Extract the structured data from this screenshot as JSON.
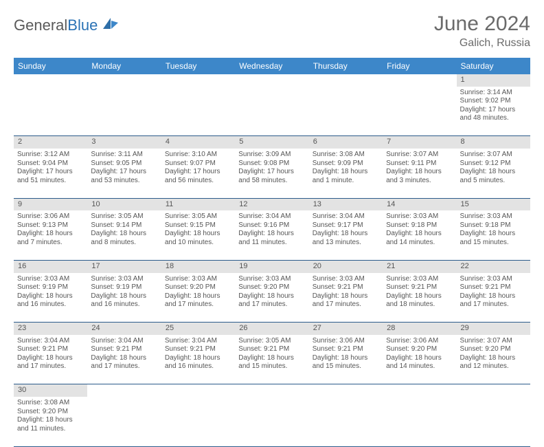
{
  "brand": {
    "part1": "General",
    "part2": "Blue"
  },
  "title": "June 2024",
  "location": "Galich, Russia",
  "header_bg": "#3d87c9",
  "daynum_bg": "#e3e3e3",
  "rule_color": "#2a5a8a",
  "day_headers": [
    "Sunday",
    "Monday",
    "Tuesday",
    "Wednesday",
    "Thursday",
    "Friday",
    "Saturday"
  ],
  "weeks": [
    [
      null,
      null,
      null,
      null,
      null,
      null,
      {
        "n": "1",
        "sr": "3:14 AM",
        "ss": "9:02 PM",
        "dl": "17 hours and 48 minutes."
      }
    ],
    [
      {
        "n": "2",
        "sr": "3:12 AM",
        "ss": "9:04 PM",
        "dl": "17 hours and 51 minutes."
      },
      {
        "n": "3",
        "sr": "3:11 AM",
        "ss": "9:05 PM",
        "dl": "17 hours and 53 minutes."
      },
      {
        "n": "4",
        "sr": "3:10 AM",
        "ss": "9:07 PM",
        "dl": "17 hours and 56 minutes."
      },
      {
        "n": "5",
        "sr": "3:09 AM",
        "ss": "9:08 PM",
        "dl": "17 hours and 58 minutes."
      },
      {
        "n": "6",
        "sr": "3:08 AM",
        "ss": "9:09 PM",
        "dl": "18 hours and 1 minute."
      },
      {
        "n": "7",
        "sr": "3:07 AM",
        "ss": "9:11 PM",
        "dl": "18 hours and 3 minutes."
      },
      {
        "n": "8",
        "sr": "3:07 AM",
        "ss": "9:12 PM",
        "dl": "18 hours and 5 minutes."
      }
    ],
    [
      {
        "n": "9",
        "sr": "3:06 AM",
        "ss": "9:13 PM",
        "dl": "18 hours and 7 minutes."
      },
      {
        "n": "10",
        "sr": "3:05 AM",
        "ss": "9:14 PM",
        "dl": "18 hours and 8 minutes."
      },
      {
        "n": "11",
        "sr": "3:05 AM",
        "ss": "9:15 PM",
        "dl": "18 hours and 10 minutes."
      },
      {
        "n": "12",
        "sr": "3:04 AM",
        "ss": "9:16 PM",
        "dl": "18 hours and 11 minutes."
      },
      {
        "n": "13",
        "sr": "3:04 AM",
        "ss": "9:17 PM",
        "dl": "18 hours and 13 minutes."
      },
      {
        "n": "14",
        "sr": "3:03 AM",
        "ss": "9:18 PM",
        "dl": "18 hours and 14 minutes."
      },
      {
        "n": "15",
        "sr": "3:03 AM",
        "ss": "9:18 PM",
        "dl": "18 hours and 15 minutes."
      }
    ],
    [
      {
        "n": "16",
        "sr": "3:03 AM",
        "ss": "9:19 PM",
        "dl": "18 hours and 16 minutes."
      },
      {
        "n": "17",
        "sr": "3:03 AM",
        "ss": "9:19 PM",
        "dl": "18 hours and 16 minutes."
      },
      {
        "n": "18",
        "sr": "3:03 AM",
        "ss": "9:20 PM",
        "dl": "18 hours and 17 minutes."
      },
      {
        "n": "19",
        "sr": "3:03 AM",
        "ss": "9:20 PM",
        "dl": "18 hours and 17 minutes."
      },
      {
        "n": "20",
        "sr": "3:03 AM",
        "ss": "9:21 PM",
        "dl": "18 hours and 17 minutes."
      },
      {
        "n": "21",
        "sr": "3:03 AM",
        "ss": "9:21 PM",
        "dl": "18 hours and 18 minutes."
      },
      {
        "n": "22",
        "sr": "3:03 AM",
        "ss": "9:21 PM",
        "dl": "18 hours and 17 minutes."
      }
    ],
    [
      {
        "n": "23",
        "sr": "3:04 AM",
        "ss": "9:21 PM",
        "dl": "18 hours and 17 minutes."
      },
      {
        "n": "24",
        "sr": "3:04 AM",
        "ss": "9:21 PM",
        "dl": "18 hours and 17 minutes."
      },
      {
        "n": "25",
        "sr": "3:04 AM",
        "ss": "9:21 PM",
        "dl": "18 hours and 16 minutes."
      },
      {
        "n": "26",
        "sr": "3:05 AM",
        "ss": "9:21 PM",
        "dl": "18 hours and 15 minutes."
      },
      {
        "n": "27",
        "sr": "3:06 AM",
        "ss": "9:21 PM",
        "dl": "18 hours and 15 minutes."
      },
      {
        "n": "28",
        "sr": "3:06 AM",
        "ss": "9:20 PM",
        "dl": "18 hours and 14 minutes."
      },
      {
        "n": "29",
        "sr": "3:07 AM",
        "ss": "9:20 PM",
        "dl": "18 hours and 12 minutes."
      }
    ],
    [
      {
        "n": "30",
        "sr": "3:08 AM",
        "ss": "9:20 PM",
        "dl": "18 hours and 11 minutes."
      },
      null,
      null,
      null,
      null,
      null,
      null
    ]
  ],
  "labels": {
    "sunrise": "Sunrise:",
    "sunset": "Sunset:",
    "daylight": "Daylight:"
  }
}
